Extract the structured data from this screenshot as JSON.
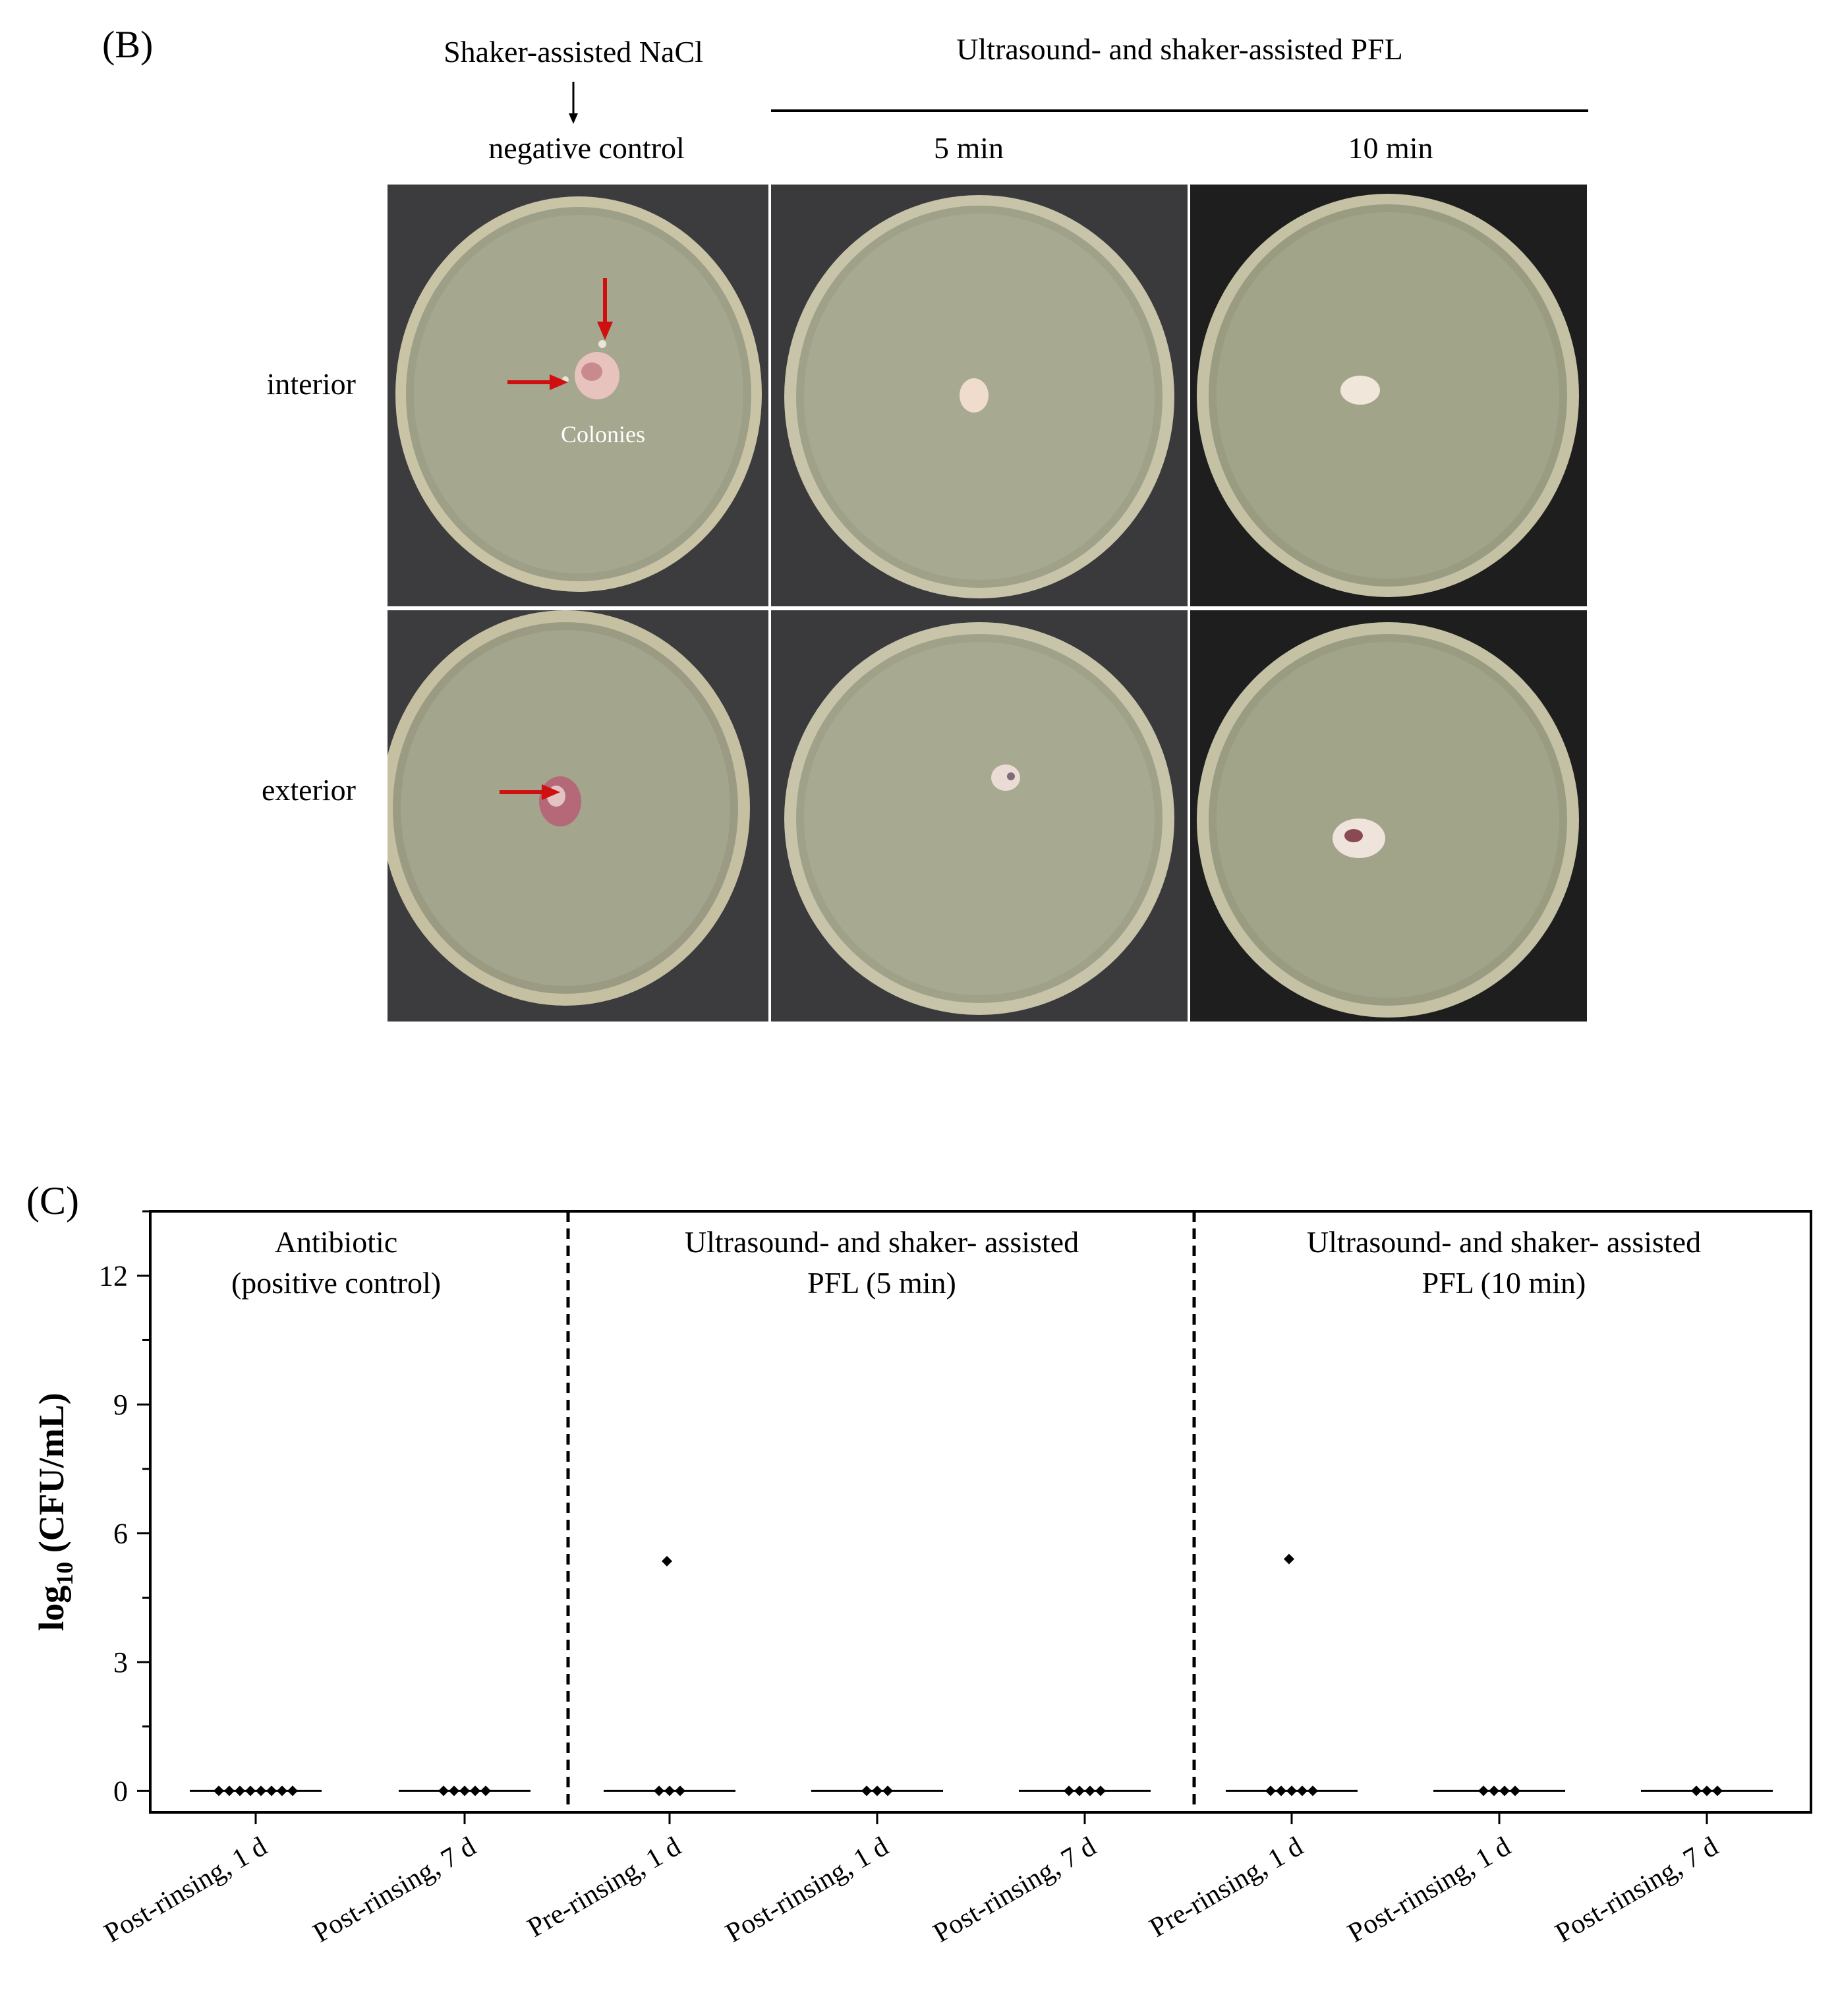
{
  "panel_b": {
    "label": "(B)",
    "header_control": "Shaker-assisted NaCl",
    "header_control_sub": "negative control",
    "header_group": "Ultrasound- and shaker-assisted PFL",
    "header_5min": "5 min",
    "header_10min": "10 min",
    "row_interior": "interior",
    "row_exterior": "exterior",
    "annotation_colonies": "Colonies",
    "colors": {
      "arrow": "#d01010",
      "agar": "#9a9c82",
      "background": "#3a3a3a"
    }
  },
  "panel_c": {
    "label": "(C)",
    "ylabel": "log",
    "ylabel_sub": "10",
    "ylabel_rest": " (CFU/mL)",
    "group_titles": [
      {
        "line1": "Antibiotic",
        "line2": "(positive control)"
      },
      {
        "line1": "Ultrasound- and shaker- assisted",
        "line2": "PFL (5 min)"
      },
      {
        "line1": "Ultrasound- and shaker- assisted",
        "line2": "PFL (10 min)"
      }
    ],
    "chart_data": {
      "type": "scatter",
      "y_ticks": [
        "0",
        "3",
        "6",
        "9",
        "12"
      ],
      "ylim": [
        -0.5,
        13.5
      ],
      "categories": [
        "Post-rinsing, 1 d",
        "Post-rinsing, 7 d",
        "Pre-rinsing, 1 d",
        "Post-rinsing, 1 d",
        "Post-rinsing, 7 d",
        "Pre-rinsing, 1 d",
        "Post-rinsing, 1 d",
        "Post-rinsing, 7 d"
      ],
      "groups": [
        {
          "category_indices": [
            0,
            1
          ]
        },
        {
          "category_indices": [
            2,
            3,
            4
          ]
        },
        {
          "category_indices": [
            5,
            6,
            7
          ]
        }
      ],
      "points": [
        {
          "cat": 0,
          "values": [
            0,
            0,
            0,
            0,
            0,
            0,
            0,
            0
          ]
        },
        {
          "cat": 1,
          "values": [
            0,
            0,
            0,
            0,
            0
          ]
        },
        {
          "cat": 2,
          "values": [
            0,
            0,
            0,
            5.35
          ]
        },
        {
          "cat": 3,
          "values": [
            0,
            0,
            0
          ]
        },
        {
          "cat": 4,
          "values": [
            0,
            0,
            0,
            0
          ]
        },
        {
          "cat": 5,
          "values": [
            0,
            0,
            0,
            0,
            0,
            5.4
          ]
        },
        {
          "cat": 6,
          "values": [
            0,
            0,
            0,
            0
          ]
        },
        {
          "cat": 7,
          "values": [
            0,
            0,
            0
          ]
        }
      ],
      "median": [
        0,
        0,
        0,
        0,
        0,
        0,
        0,
        0
      ]
    }
  }
}
